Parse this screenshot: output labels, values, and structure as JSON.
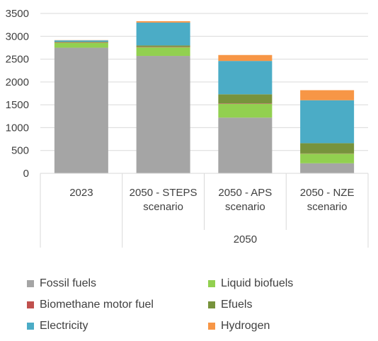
{
  "chart_data": {
    "type": "bar",
    "stacked": true,
    "ylim": [
      0,
      3500
    ],
    "yticks": [
      0,
      500,
      1000,
      1500,
      2000,
      2500,
      3000,
      3500
    ],
    "grid": true,
    "legend_position": "bottom",
    "categories": [
      "2023",
      "2050 - STEPS scenario",
      "2050 - APS scenario",
      "2050 - NZE scenario"
    ],
    "category_lines": [
      [
        "2023"
      ],
      [
        "2050 - STEPS",
        "scenario"
      ],
      [
        "2050 - APS",
        "scenario"
      ],
      [
        "2050 - NZE",
        "scenario"
      ]
    ],
    "group_labels": [
      {
        "label": "",
        "span": [
          0,
          0
        ]
      },
      {
        "label": "2050",
        "span": [
          1,
          3
        ]
      }
    ],
    "series": [
      {
        "name": "Fossil fuels",
        "color": "#A5A5A5",
        "values": [
          2750,
          2570,
          1220,
          220
        ]
      },
      {
        "name": "Liquid biofuels",
        "color": "#92D050",
        "values": [
          110,
          190,
          300,
          210
        ]
      },
      {
        "name": "Biomethane motor fuel",
        "color": "#C0504D",
        "values": [
          10,
          10,
          10,
          5
        ]
      },
      {
        "name": "Efuels",
        "color": "#77933C",
        "values": [
          10,
          30,
          200,
          225
        ]
      },
      {
        "name": "Electricity",
        "color": "#4BACC6",
        "values": [
          30,
          500,
          730,
          940
        ]
      },
      {
        "name": "Hydrogen",
        "color": "#F79646",
        "values": [
          5,
          30,
          130,
          220
        ]
      }
    ]
  }
}
